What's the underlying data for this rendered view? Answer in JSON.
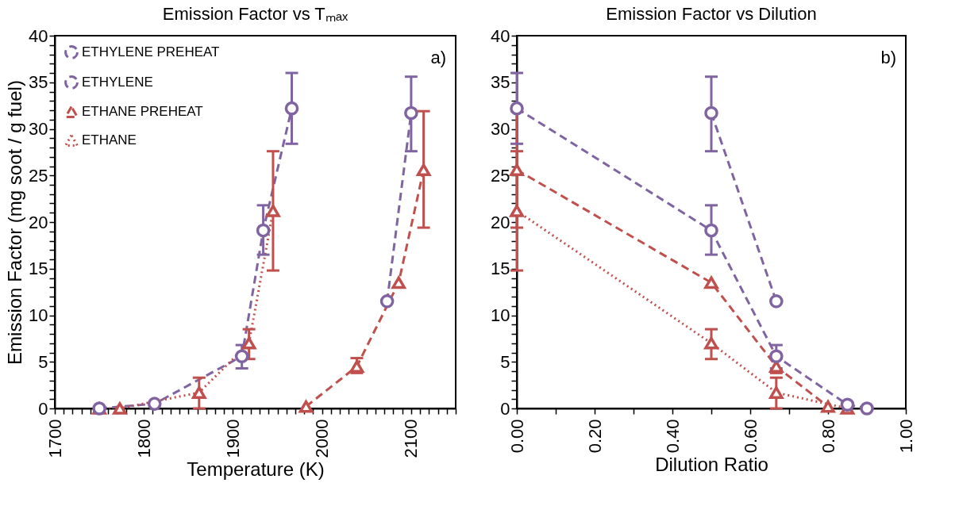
{
  "chart_data": [
    {
      "type": "line",
      "title": "Emission Factor vs Tₘₐₓ",
      "xlabel": "Temperature (K)",
      "ylabel": "Emission Factor (mg soot / g fuel)",
      "xlim": [
        1700,
        2150
      ],
      "ylim": [
        0,
        40
      ],
      "xticks": [
        1700,
        {
          "value": 1710,
          "label": null
        },
        {
          "value": 1720,
          "label": null
        },
        {
          "value": 1730,
          "label": null
        },
        {
          "value": 1740,
          "label": null
        },
        {
          "value": 1750,
          "label": null
        },
        {
          "value": 1760,
          "label": null
        },
        {
          "value": 1770,
          "label": null
        },
        {
          "value": 1780,
          "label": null
        },
        {
          "value": 1790,
          "label": null
        },
        1800,
        {
          "value": 1810,
          "label": null
        },
        {
          "value": 1820,
          "label": null
        },
        {
          "value": 1830,
          "label": null
        },
        {
          "value": 1840,
          "label": null
        },
        {
          "value": 1850,
          "label": null
        },
        {
          "value": 1860,
          "label": null
        },
        {
          "value": 1870,
          "label": null
        },
        {
          "value": 1880,
          "label": null
        },
        {
          "value": 1890,
          "label": null
        },
        1900,
        {
          "value": 1910,
          "label": null
        },
        {
          "value": 1920,
          "label": null
        },
        {
          "value": 1930,
          "label": null
        },
        {
          "value": 1940,
          "label": null
        },
        {
          "value": 1950,
          "label": null
        },
        {
          "value": 1960,
          "label": null
        },
        {
          "value": 1970,
          "label": null
        },
        {
          "value": 1980,
          "label": null
        },
        {
          "value": 1990,
          "label": null
        },
        2000,
        {
          "value": 2010,
          "label": null
        },
        {
          "value": 2020,
          "label": null
        },
        {
          "value": 2030,
          "label": null
        },
        {
          "value": 2040,
          "label": null
        },
        {
          "value": 2050,
          "label": null
        },
        {
          "value": 2060,
          "label": null
        },
        {
          "value": 2070,
          "label": null
        },
        {
          "value": 2080,
          "label": null
        },
        {
          "value": 2090,
          "label": null
        },
        2100,
        {
          "value": 2110,
          "label": null
        },
        {
          "value": 2120,
          "label": null
        },
        {
          "value": 2130,
          "label": null
        },
        {
          "value": 2140,
          "label": null
        },
        {
          "value": 2150,
          "label": null
        }
      ],
      "yticks": [
        0,
        {
          "value": 1,
          "label": null
        },
        {
          "value": 2,
          "label": null
        },
        {
          "value": 3,
          "label": null
        },
        {
          "value": 4,
          "label": null
        },
        5,
        {
          "value": 6,
          "label": null
        },
        {
          "value": 7,
          "label": null
        },
        {
          "value": 8,
          "label": null
        },
        {
          "value": 9,
          "label": null
        },
        10,
        {
          "value": 11,
          "label": null
        },
        {
          "value": 12,
          "label": null
        },
        {
          "value": 13,
          "label": null
        },
        {
          "value": 14,
          "label": null
        },
        15,
        {
          "value": 16,
          "label": null
        },
        {
          "value": 17,
          "label": null
        },
        {
          "value": 18,
          "label": null
        },
        {
          "value": 19,
          "label": null
        },
        20,
        {
          "value": 21,
          "label": null
        },
        {
          "value": 22,
          "label": null
        },
        {
          "value": 23,
          "label": null
        },
        {
          "value": 24,
          "label": null
        },
        25,
        {
          "value": 26,
          "label": null
        },
        {
          "value": 27,
          "label": null
        },
        {
          "value": 28,
          "label": null
        },
        {
          "value": 29,
          "label": null
        },
        30,
        {
          "value": 31,
          "label": null
        },
        {
          "value": 32,
          "label": null
        },
        {
          "value": 33,
          "label": null
        },
        {
          "value": 34,
          "label": null
        },
        35,
        {
          "value": 36,
          "label": null
        },
        {
          "value": 37,
          "label": null
        },
        {
          "value": 38,
          "label": null
        },
        {
          "value": 39,
          "label": null
        },
        40
      ],
      "grid": false,
      "legend": "top left",
      "annotations": [
        "a)"
      ],
      "series": [
        {
          "name": "ETHYLENE PREHEAT",
          "color": "#8064a2",
          "marker": "circle",
          "line_style": "dashed",
          "x": [
            2073,
            2100
          ],
          "values": [
            11.5,
            31.7
          ],
          "errors": [
            null,
            [
              27.6,
              35.6
            ]
          ]
        },
        {
          "name": "ETHYLENE",
          "color": "#8064a2",
          "marker": "circle",
          "line_style": "dashed",
          "x": [
            1750,
            1812,
            1910,
            1934,
            1966
          ],
          "values": [
            0,
            0.5,
            5.6,
            19.1,
            32.2
          ],
          "errors": [
            null,
            null,
            [
              4.3,
              6.8
            ],
            [
              16.5,
              21.8
            ],
            [
              28.4,
              36
            ]
          ]
        },
        {
          "name": "ETHANE PREHEAT",
          "color": "#c0504d",
          "marker": "triangle",
          "line_style": "dashed",
          "x": [
            1982,
            2039,
            2086,
            2114
          ],
          "values": [
            0.2,
            4.5,
            13.5,
            25.6
          ],
          "errors": [
            null,
            [
              3.8,
              5.4
            ],
            null,
            [
              19.4,
              31.9
            ]
          ]
        },
        {
          "name": "ETHANE",
          "color": "#c0504d",
          "marker": "triangle",
          "line_style": "dotted",
          "x": [
            1750,
            1773,
            1862,
            1918,
            1945
          ],
          "values": [
            0,
            0,
            1.7,
            7.0,
            21.2
          ],
          "errors": [
            null,
            null,
            [
              0,
              3.3
            ],
            [
              5.3,
              8.5
            ],
            [
              14.8,
              27.6
            ]
          ]
        }
      ]
    },
    {
      "type": "line",
      "title": "Emission Factor vs Dilution",
      "xlabel": "Dilution Ratio",
      "xlim": [
        0,
        1
      ],
      "ylim": [
        0,
        40
      ],
      "xticks": [
        {
          "value": 0,
          "label": "0.00"
        },
        {
          "value": 0.1,
          "label": null
        },
        {
          "value": 0.2,
          "label": "0.20"
        },
        {
          "value": 0.3,
          "label": null
        },
        {
          "value": 0.4,
          "label": "0.40"
        },
        {
          "value": 0.5,
          "label": null
        },
        {
          "value": 0.6,
          "label": "0.60"
        },
        {
          "value": 0.7,
          "label": null
        },
        {
          "value": 0.8,
          "label": "0.80"
        },
        {
          "value": 0.9,
          "label": null
        },
        {
          "value": 1,
          "label": "1.00"
        }
      ],
      "yticks": [
        0,
        {
          "value": 1,
          "label": null
        },
        {
          "value": 2,
          "label": null
        },
        {
          "value": 3,
          "label": null
        },
        {
          "value": 4,
          "label": null
        },
        5,
        {
          "value": 6,
          "label": null
        },
        {
          "value": 7,
          "label": null
        },
        {
          "value": 8,
          "label": null
        },
        {
          "value": 9,
          "label": null
        },
        10,
        {
          "value": 11,
          "label": null
        },
        {
          "value": 12,
          "label": null
        },
        {
          "value": 13,
          "label": null
        },
        {
          "value": 14,
          "label": null
        },
        15,
        {
          "value": 16,
          "label": null
        },
        {
          "value": 17,
          "label": null
        },
        {
          "value": 18,
          "label": null
        },
        {
          "value": 19,
          "label": null
        },
        20,
        {
          "value": 21,
          "label": null
        },
        {
          "value": 22,
          "label": null
        },
        {
          "value": 23,
          "label": null
        },
        {
          "value": 24,
          "label": null
        },
        25,
        {
          "value": 26,
          "label": null
        },
        {
          "value": 27,
          "label": null
        },
        {
          "value": 28,
          "label": null
        },
        {
          "value": 29,
          "label": null
        },
        30,
        {
          "value": 31,
          "label": null
        },
        {
          "value": 32,
          "label": null
        },
        {
          "value": 33,
          "label": null
        },
        {
          "value": 34,
          "label": null
        },
        35,
        {
          "value": 36,
          "label": null
        },
        {
          "value": 37,
          "label": null
        },
        {
          "value": 38,
          "label": null
        },
        {
          "value": 39,
          "label": null
        },
        40
      ],
      "grid": false,
      "annotations": [
        "b)"
      ],
      "series": [
        {
          "color": "#8064a2",
          "marker": "circle",
          "line_style": "dashed",
          "x": [
            0.5,
            0.667
          ],
          "values": [
            31.7,
            11.5
          ],
          "errors": [
            [
              27.6,
              35.6
            ],
            null
          ]
        },
        {
          "color": "#8064a2",
          "marker": "circle",
          "line_style": "dashed",
          "x": [
            0,
            0.5,
            0.667,
            0.85,
            0.9
          ],
          "values": [
            32.2,
            19.1,
            5.6,
            0.4,
            0
          ],
          "errors": [
            [
              28.4,
              36
            ],
            [
              16.5,
              21.8
            ],
            [
              4.3,
              6.8
            ],
            null,
            null
          ]
        },
        {
          "color": "#c0504d",
          "marker": "triangle",
          "line_style": "dashed",
          "x": [
            0,
            0.5,
            0.667,
            0.8
          ],
          "values": [
            25.6,
            13.5,
            4.5,
            0.2
          ],
          "errors": [
            [
              19.4,
              31.9
            ],
            null,
            [
              3.8,
              5.4
            ],
            null
          ]
        },
        {
          "color": "#c0504d",
          "marker": "triangle",
          "line_style": "dotted",
          "x": [
            0,
            0.5,
            0.667,
            0.85
          ],
          "values": [
            21.2,
            7.0,
            1.7,
            0
          ],
          "errors": [
            [
              14.8,
              27.6
            ],
            [
              5.3,
              8.5
            ],
            [
              0,
              3.3
            ],
            null
          ]
        }
      ]
    }
  ]
}
